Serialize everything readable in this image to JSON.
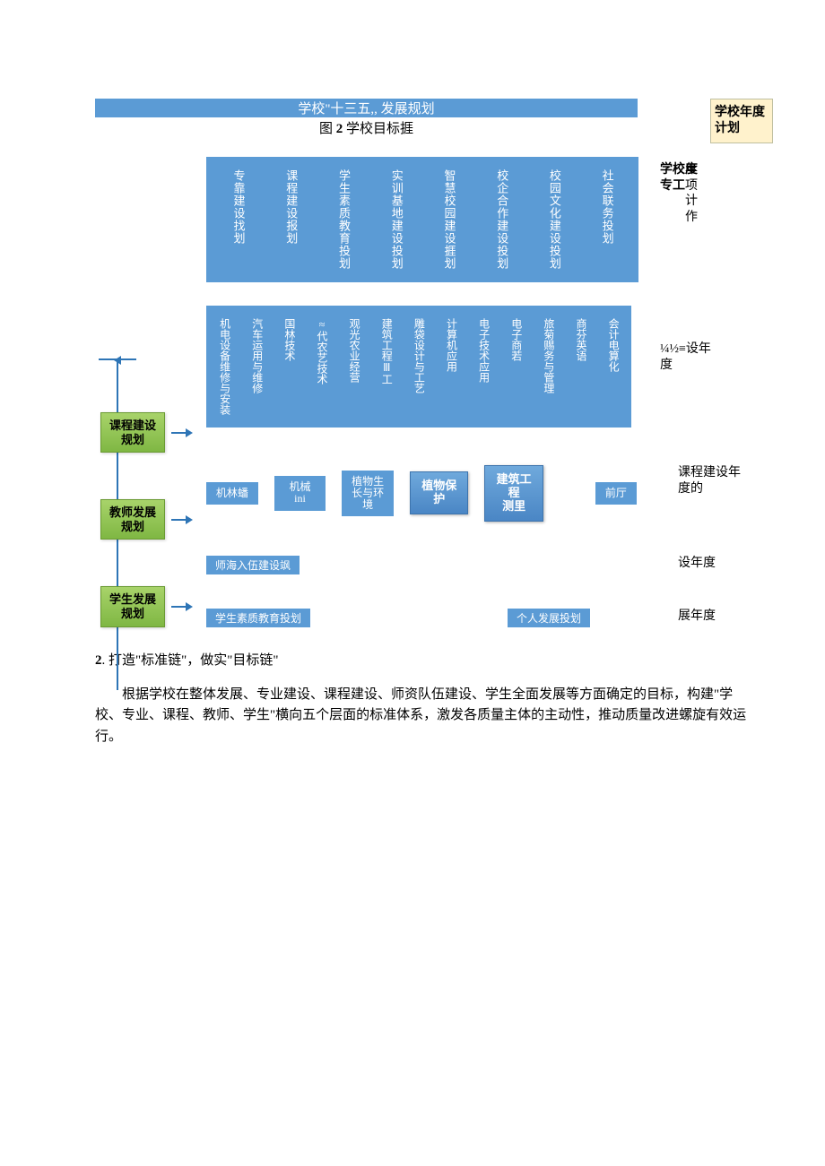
{
  "header": {
    "title": "学校\"十三五,, 发展规划",
    "caption_prefix": "图 ",
    "caption_num": "2",
    "caption_rest": " 学校目标捱"
  },
  "colors": {
    "blue": "#5b9bd5",
    "green": "#8bc34a",
    "yellow": "#fff2cc",
    "line": "#2e75b6",
    "text": "#000000",
    "white": "#ffffff"
  },
  "yellow_note": "学校年度计划",
  "row1": {
    "items": [
      "专靠建设找划",
      "课程建设报划",
      "学生素质教育投划",
      "实训基地建设投划",
      "智慧校园建设捱划",
      "校企合作建设投划",
      "校园文化建设投划",
      "社会联务投划"
    ],
    "right_plain": "年项计作",
    "right_bold": "学校度专工"
  },
  "row2": {
    "items": [
      "机电设备维修与安装",
      "汽车运用与维修",
      "国林技术",
      "≈代农艺技术",
      "观光农业经营",
      "建筑工程Ⅲ工",
      "雕袋设计与工艺",
      "计算机应用",
      "电子技术应用",
      "电子商若",
      "旅菊赐务与管理",
      "商芬英语",
      "会计电算化"
    ],
    "right": "¼½≡设年度"
  },
  "sidebar": {
    "items": [
      "课程建设规划",
      "教师发展规划",
      "学生发展规划"
    ]
  },
  "row3": {
    "flat": [
      {
        "label": "机林蟠"
      },
      {
        "label": "机械 ini"
      },
      {
        "label": "植物生长与环境"
      }
    ],
    "threeD": [
      {
        "label": "植物保护"
      },
      {
        "label": "建筑工程测里"
      }
    ],
    "tail": "前厅",
    "right": "课程建设年度的"
  },
  "row4": {
    "items": [
      "师海入伍建设飒"
    ],
    "right": "设年度"
  },
  "row5": {
    "items": [
      "学生素质教育投划",
      "个人发展投划"
    ],
    "right": "展年度"
  },
  "body": {
    "lead_num": "2",
    "lead": ". 打造\"标准链\"，做实\"目标链\"",
    "para": "根据学校在整体发展、专业建设、课程建设、师资队伍建设、学生全面发展等方面确定的目标，构建\"学校、专业、课程、教师、学生\"横向五个层面的标准体系，激发各质量主体的主动性，推动质量改进螺旋有效运行。"
  }
}
